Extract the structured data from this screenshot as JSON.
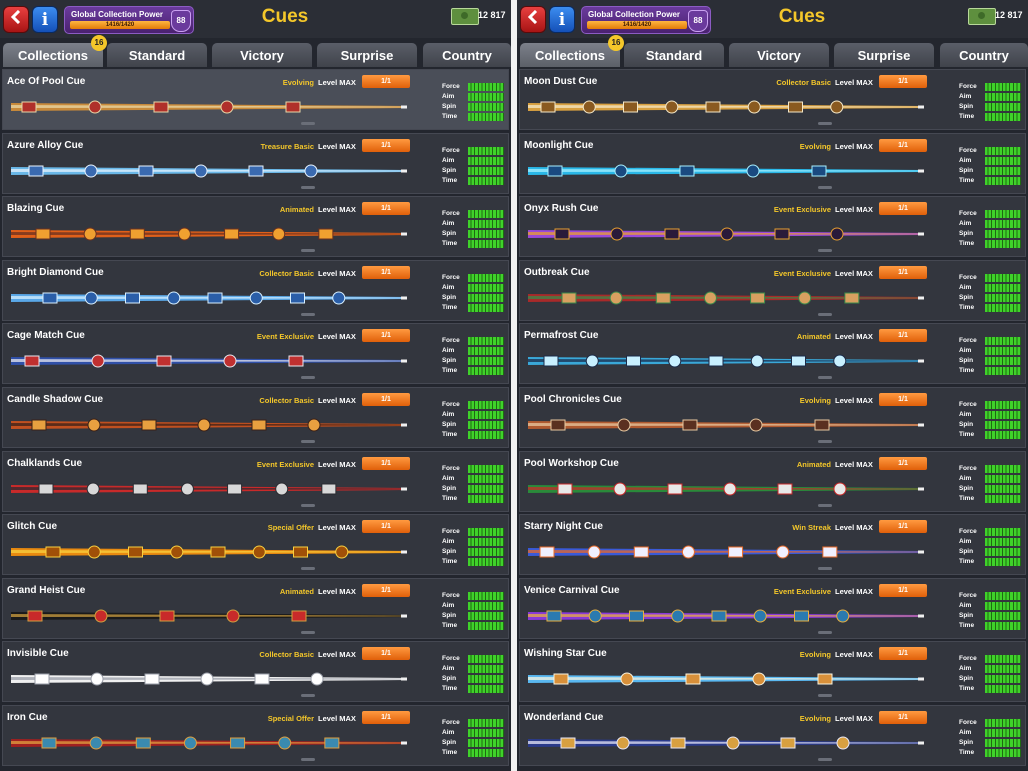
{
  "panels": [
    {
      "header": {
        "back_icon": "back-arrow-icon",
        "info_icon": "info-icon",
        "collection_power_label": "Global Collection Power",
        "collection_power_progress": "1416/1420",
        "collection_power_fraction": 0.997,
        "collection_power_level": "88",
        "title": "Cues",
        "cash": "12 817"
      },
      "tabs": [
        {
          "label": "Collections",
          "badge": "16",
          "active": true
        },
        {
          "label": "Standard"
        },
        {
          "label": "Victory"
        },
        {
          "label": "Surprise"
        },
        {
          "label": "Country"
        }
      ],
      "stat_labels": [
        "Force",
        "Aim",
        "Spin",
        "Time"
      ],
      "level_label": "Level MAX",
      "cues": [
        {
          "name": "Ace Of Pool Cue",
          "rarity": "Evolving",
          "count": "1/1",
          "colors": [
            "#c98a3a",
            "#e8d8a8",
            "#b0302a"
          ]
        },
        {
          "name": "Azure Alloy Cue",
          "rarity": "Treasure Basic",
          "count": "1/1",
          "colors": [
            "#6ab8e8",
            "#e8f4ff",
            "#3a6ab0"
          ]
        },
        {
          "name": "Blazing Cue",
          "rarity": "Animated",
          "count": "1/1",
          "colors": [
            "#e0601a",
            "#6a3020",
            "#f0a030"
          ]
        },
        {
          "name": "Bright Diamond Cue",
          "rarity": "Collector Basic",
          "count": "1/1",
          "colors": [
            "#5aa8e8",
            "#d8f0ff",
            "#2a5ea8"
          ]
        },
        {
          "name": "Cage Match Cue",
          "rarity": "Event Exclusive",
          "count": "1/1",
          "colors": [
            "#3050a8",
            "#e8e8f0",
            "#c03030"
          ]
        },
        {
          "name": "Candle Shadow Cue",
          "rarity": "Collector Basic",
          "count": "1/1",
          "colors": [
            "#c05020",
            "#3a2018",
            "#e8a040"
          ]
        },
        {
          "name": "Chalklands Cue",
          "rarity": "Event Exclusive",
          "count": "1/1",
          "colors": [
            "#c82a2a",
            "#2a2a30",
            "#d8d8d8"
          ]
        },
        {
          "name": "Glitch Cue",
          "rarity": "Special Offer",
          "count": "1/1",
          "colors": [
            "#e88a10",
            "#f8d040",
            "#a05008"
          ]
        },
        {
          "name": "Grand Heist Cue",
          "rarity": "Animated",
          "count": "1/1",
          "colors": [
            "#1a1a1a",
            "#d0a040",
            "#c82a2a"
          ]
        },
        {
          "name": "Invisible Cue",
          "rarity": "Collector Basic",
          "count": "1/1",
          "colors": [
            "#f0f0f0",
            "#9a9ea8",
            "#ffffff"
          ]
        },
        {
          "name": "Iron Cue",
          "rarity": "Special Offer",
          "count": "1/1",
          "colors": [
            "#a02020",
            "#e0a040",
            "#3a8ab0"
          ]
        }
      ]
    },
    {
      "header": {
        "back_icon": "back-arrow-icon",
        "info_icon": "info-icon",
        "collection_power_label": "Global Collection Power",
        "collection_power_progress": "1416/1420",
        "collection_power_fraction": 0.997,
        "collection_power_level": "88",
        "title": "Cues",
        "cash": "12 817"
      },
      "tabs": [
        {
          "label": "Collections",
          "badge": "16",
          "active": true
        },
        {
          "label": "Standard"
        },
        {
          "label": "Victory"
        },
        {
          "label": "Surprise"
        },
        {
          "label": "Country"
        }
      ],
      "stat_labels": [
        "Force",
        "Aim",
        "Spin",
        "Time"
      ],
      "level_label": "Level MAX",
      "cues": [
        {
          "name": "Moon Dust Cue",
          "rarity": "Collector Basic",
          "count": "1/1",
          "colors": [
            "#d8a040",
            "#f4e8c8",
            "#8a5a20"
          ]
        },
        {
          "name": "Moonlight Cue",
          "rarity": "Evolving",
          "count": "1/1",
          "colors": [
            "#2ab8e8",
            "#a8f0ff",
            "#1a4a80"
          ]
        },
        {
          "name": "Onyx Rush Cue",
          "rarity": "Event Exclusive",
          "count": "1/1",
          "colors": [
            "#9a4ad8",
            "#e8a030",
            "#2a1a3a"
          ]
        },
        {
          "name": "Outbreak Cue",
          "rarity": "Event Exclusive",
          "count": "1/1",
          "colors": [
            "#a82a2a",
            "#3a8a4a",
            "#d8a060"
          ]
        },
        {
          "name": "Permafrost Cue",
          "rarity": "Animated",
          "count": "1/1",
          "colors": [
            "#3aa8d8",
            "#1a2a48",
            "#c8f0ff"
          ]
        },
        {
          "name": "Pool Chronicles Cue",
          "rarity": "Evolving",
          "count": "1/1",
          "colors": [
            "#b05a30",
            "#e8c8a0",
            "#5a3020"
          ]
        },
        {
          "name": "Pool Workshop Cue",
          "rarity": "Animated",
          "count": "1/1",
          "colors": [
            "#2a8a3a",
            "#c82a2a",
            "#e8e8e8"
          ]
        },
        {
          "name": "Starry Night Cue",
          "rarity": "Win Streak",
          "count": "1/1",
          "colors": [
            "#3a5ad8",
            "#e86a2a",
            "#f0f0ff"
          ]
        },
        {
          "name": "Venice Carnival Cue",
          "rarity": "Event Exclusive",
          "count": "1/1",
          "colors": [
            "#8a3ad8",
            "#e8b040",
            "#2a7ab0"
          ]
        },
        {
          "name": "Wishing Star Cue",
          "rarity": "Evolving",
          "count": "1/1",
          "colors": [
            "#5ab8f0",
            "#f8f4e0",
            "#d8903a"
          ]
        },
        {
          "name": "Wonderland Cue",
          "rarity": "Evolving",
          "count": "1/1",
          "colors": [
            "#2a3a8a",
            "#e8e8f8",
            "#d8a040"
          ]
        }
      ]
    }
  ]
}
